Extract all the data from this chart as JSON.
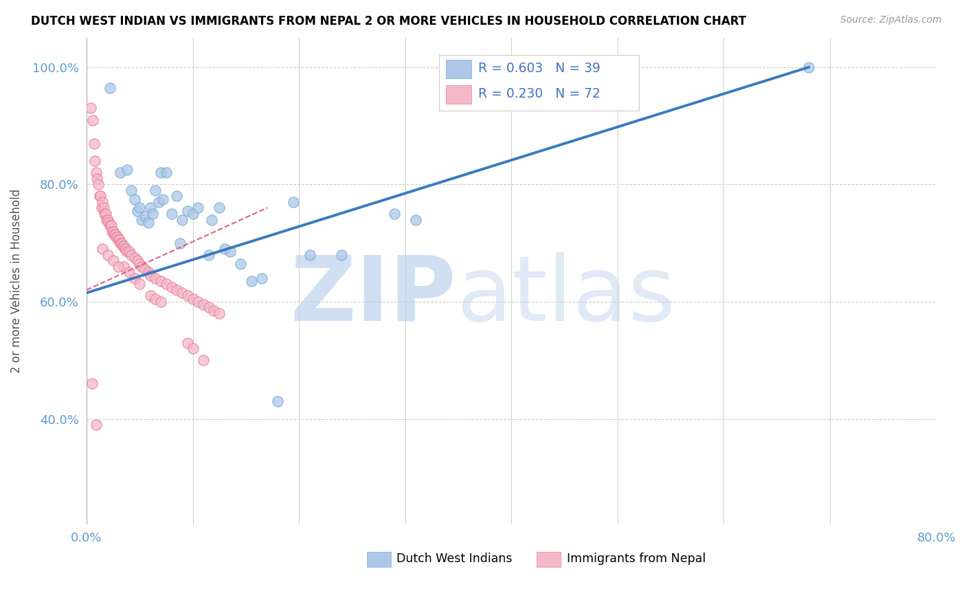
{
  "title": "DUTCH WEST INDIAN VS IMMIGRANTS FROM NEPAL 2 OR MORE VEHICLES IN HOUSEHOLD CORRELATION CHART",
  "source": "Source: ZipAtlas.com",
  "ylabel": "2 or more Vehicles in Household",
  "x_min": 0.0,
  "x_max": 0.8,
  "y_min": 0.22,
  "y_max": 1.05,
  "x_ticks": [
    0.0,
    0.1,
    0.2,
    0.3,
    0.4,
    0.5,
    0.6,
    0.7,
    0.8
  ],
  "x_tick_labels": [
    "0.0%",
    "",
    "",
    "",
    "",
    "",
    "",
    "",
    "80.0%"
  ],
  "y_ticks": [
    0.4,
    0.6,
    0.8,
    1.0
  ],
  "y_tick_labels": [
    "40.0%",
    "60.0%",
    "80.0%",
    "100.0%"
  ],
  "blue_R": "0.603",
  "blue_N": "39",
  "pink_R": "0.230",
  "pink_N": "72",
  "blue_color": "#aec6e8",
  "pink_color": "#f4b8c8",
  "blue_edge_color": "#7bafd4",
  "pink_edge_color": "#e87fa0",
  "blue_line_color": "#3a7abf",
  "pink_line_color": "#e06080",
  "watermark_zip": "ZIP",
  "watermark_atlas": "atlas",
  "blue_scatter_x": [
    0.022,
    0.032,
    0.038,
    0.042,
    0.045,
    0.048,
    0.05,
    0.052,
    0.055,
    0.058,
    0.06,
    0.062,
    0.065,
    0.068,
    0.07,
    0.072,
    0.075,
    0.08,
    0.085,
    0.088,
    0.09,
    0.095,
    0.1,
    0.105,
    0.115,
    0.118,
    0.125,
    0.13,
    0.135,
    0.145,
    0.155,
    0.165,
    0.18,
    0.195,
    0.21,
    0.29,
    0.31,
    0.68,
    0.24
  ],
  "blue_scatter_y": [
    0.965,
    0.82,
    0.825,
    0.79,
    0.775,
    0.755,
    0.76,
    0.74,
    0.745,
    0.735,
    0.76,
    0.75,
    0.79,
    0.77,
    0.82,
    0.775,
    0.82,
    0.75,
    0.78,
    0.7,
    0.74,
    0.755,
    0.75,
    0.76,
    0.68,
    0.74,
    0.76,
    0.69,
    0.685,
    0.665,
    0.635,
    0.64,
    0.43,
    0.77,
    0.68,
    0.75,
    0.74,
    1.0,
    0.68
  ],
  "pink_scatter_x": [
    0.004,
    0.006,
    0.007,
    0.008,
    0.009,
    0.01,
    0.011,
    0.012,
    0.013,
    0.014,
    0.015,
    0.016,
    0.017,
    0.018,
    0.019,
    0.02,
    0.021,
    0.022,
    0.023,
    0.024,
    0.025,
    0.026,
    0.027,
    0.028,
    0.029,
    0.03,
    0.031,
    0.032,
    0.033,
    0.034,
    0.035,
    0.036,
    0.037,
    0.038,
    0.04,
    0.042,
    0.045,
    0.048,
    0.05,
    0.052,
    0.055,
    0.058,
    0.06,
    0.065,
    0.07,
    0.075,
    0.08,
    0.085,
    0.09,
    0.095,
    0.1,
    0.105,
    0.11,
    0.115,
    0.12,
    0.125,
    0.035,
    0.04,
    0.045,
    0.05,
    0.06,
    0.065,
    0.07,
    0.015,
    0.02,
    0.025,
    0.03,
    0.095,
    0.1,
    0.11,
    0.005,
    0.009
  ],
  "pink_scatter_y": [
    0.93,
    0.91,
    0.87,
    0.84,
    0.82,
    0.81,
    0.8,
    0.78,
    0.78,
    0.76,
    0.77,
    0.76,
    0.75,
    0.75,
    0.74,
    0.74,
    0.735,
    0.73,
    0.73,
    0.72,
    0.72,
    0.715,
    0.715,
    0.71,
    0.71,
    0.705,
    0.705,
    0.7,
    0.7,
    0.695,
    0.695,
    0.69,
    0.69,
    0.685,
    0.685,
    0.68,
    0.675,
    0.67,
    0.665,
    0.66,
    0.655,
    0.65,
    0.645,
    0.64,
    0.635,
    0.63,
    0.625,
    0.62,
    0.615,
    0.61,
    0.605,
    0.6,
    0.595,
    0.59,
    0.585,
    0.58,
    0.66,
    0.65,
    0.64,
    0.63,
    0.61,
    0.605,
    0.6,
    0.69,
    0.68,
    0.67,
    0.66,
    0.53,
    0.52,
    0.5,
    0.46,
    0.39
  ],
  "blue_line_x0": 0.0,
  "blue_line_y0": 0.615,
  "blue_line_x1": 0.68,
  "blue_line_y1": 1.0,
  "pink_line_x0": 0.0,
  "pink_line_y0": 0.62,
  "pink_line_x1": 0.17,
  "pink_line_y1": 0.76
}
